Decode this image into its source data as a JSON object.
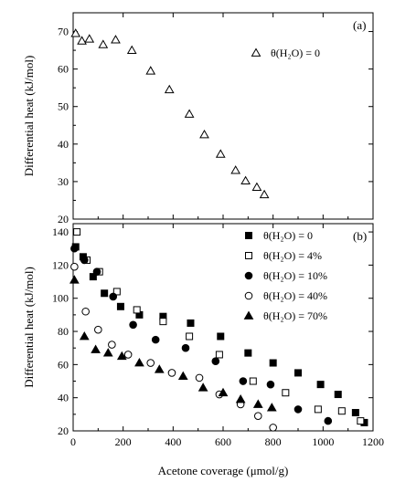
{
  "chart_data": [
    {
      "type": "scatter",
      "panel_label": "(a)",
      "ylabel": "Differential heat (kJ/mol)",
      "xlabel": "",
      "xlim": [
        0,
        1200
      ],
      "ylim": [
        20,
        75
      ],
      "yticks": [
        20,
        30,
        40,
        50,
        60,
        70
      ],
      "xticks": [
        0,
        200,
        400,
        600,
        800,
        1000,
        1200
      ],
      "show_x_tick_labels": false,
      "grid": false,
      "legend_position": "top-right",
      "series": [
        {
          "name": "θ(H₂O) = 0",
          "marker": "triangle-open",
          "x": [
            10,
            35,
            65,
            120,
            170,
            235,
            310,
            385,
            465,
            525,
            590,
            650,
            690,
            735,
            765
          ],
          "y": [
            69.5,
            67.5,
            68,
            66.5,
            67.8,
            65,
            59.5,
            54.5,
            48,
            42.5,
            37.3,
            33,
            30.2,
            28.5,
            26.5
          ]
        }
      ]
    },
    {
      "type": "scatter",
      "panel_label": "(b)",
      "ylabel": "Differential heat (kJ/mol)",
      "xlabel": "Acetone coverage (μmol/g)",
      "xlim": [
        0,
        1200
      ],
      "ylim": [
        20,
        145
      ],
      "yticks": [
        20,
        40,
        60,
        80,
        100,
        120,
        140
      ],
      "xticks": [
        0,
        200,
        400,
        600,
        800,
        1000,
        1200
      ],
      "show_x_tick_labels": true,
      "grid": false,
      "legend_position": "top-right",
      "series": [
        {
          "name": "θ(H₂O) = 0",
          "marker": "square-filled",
          "x": [
            10,
            40,
            80,
            125,
            190,
            265,
            360,
            470,
            590,
            700,
            800,
            900,
            990,
            1060,
            1130,
            1165
          ],
          "y": [
            131,
            125,
            113,
            103,
            95,
            90,
            89,
            85,
            77,
            67,
            61,
            55,
            48,
            42,
            31,
            25
          ]
        },
        {
          "name": "θ(H₂O) = 4%",
          "marker": "square-open",
          "x": [
            15,
            55,
            105,
            175,
            255,
            360,
            465,
            585,
            720,
            850,
            980,
            1075,
            1150
          ],
          "y": [
            140,
            123,
            116,
            104,
            93,
            86,
            77,
            66,
            50,
            43,
            33,
            32,
            26
          ]
        },
        {
          "name": "θ(H₂O) = 10%",
          "marker": "circle-filled",
          "x": [
            5,
            45,
            95,
            160,
            240,
            330,
            450,
            570,
            680,
            790,
            900,
            1020
          ],
          "y": [
            130,
            123,
            116,
            101,
            84,
            75,
            70,
            62,
            50,
            48,
            33,
            26
          ]
        },
        {
          "name": "θ(H₂O) = 40%",
          "marker": "circle-open",
          "x": [
            5,
            50,
            100,
            155,
            220,
            310,
            395,
            505,
            585,
            670,
            740,
            800
          ],
          "y": [
            119,
            92,
            81,
            72,
            66,
            61,
            55,
            52,
            42,
            36,
            29,
            22
          ]
        },
        {
          "name": "θ(H₂O) = 70%",
          "marker": "triangle-filled",
          "x": [
            5,
            45,
            90,
            140,
            195,
            265,
            345,
            440,
            520,
            600,
            670,
            740,
            795
          ],
          "y": [
            111,
            77,
            69,
            67,
            65,
            61,
            57,
            53,
            46,
            43,
            39,
            36,
            34
          ]
        }
      ]
    }
  ]
}
